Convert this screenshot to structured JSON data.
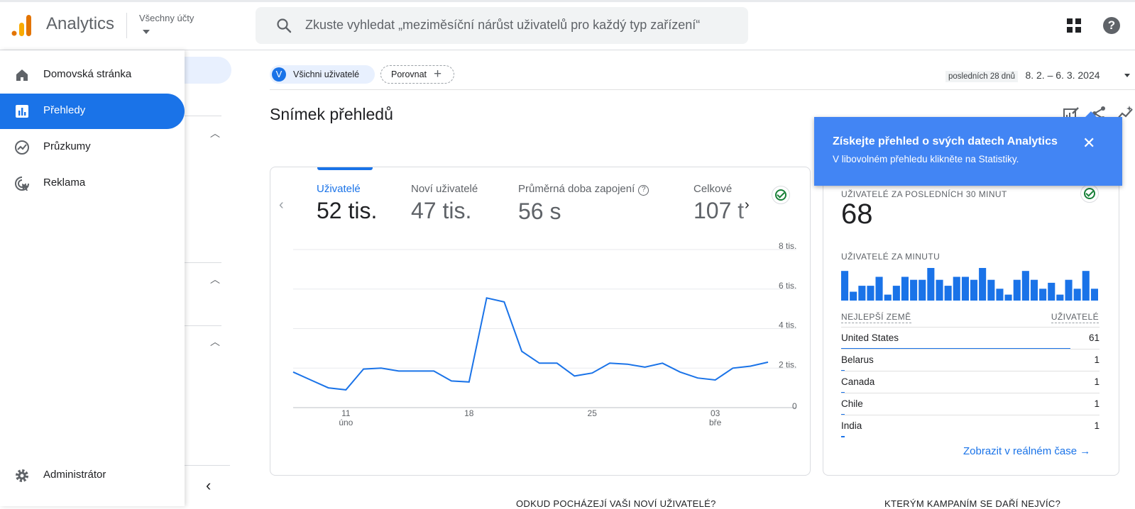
{
  "header": {
    "app_title": "Analytics",
    "account_label": "Všechny účty",
    "search_placeholder": "Zkuste vyhledat „meziměsíční nárůst uživatelů pro každý typ zařízení“",
    "icons": [
      "analytics-logo-icon",
      "search-icon",
      "apps-grid-icon",
      "help-icon"
    ]
  },
  "sidebar": {
    "items": [
      {
        "label": "Domovská stránka",
        "icon": "home-icon",
        "active": false
      },
      {
        "label": "Přehledy",
        "icon": "reports-icon",
        "active": true
      },
      {
        "label": "Průzkumy",
        "icon": "explore-icon",
        "active": false
      },
      {
        "label": "Reklama",
        "icon": "advertising-icon",
        "active": false
      }
    ],
    "admin_label": "Administrátor"
  },
  "filters": {
    "segment_badge": "V",
    "segment_label": "Všichni uživatelé",
    "compare_label": "Porovnat",
    "compare_icon": "+"
  },
  "date_range": {
    "tag": "posledních 28 dnů",
    "range": "8. 2. – 6. 3. 2024"
  },
  "page_title": "Snímek přehledů",
  "metrics": [
    {
      "label": "Uživatelé",
      "value": "52 tis.",
      "active": true
    },
    {
      "label": "Noví uživatelé",
      "value": "47 tis.",
      "active": false
    },
    {
      "label": "Průměrná doba zapojení",
      "value": "56 s",
      "active": false,
      "help": "?"
    },
    {
      "label": "Celkové",
      "value": "107 t",
      "active": false
    }
  ],
  "chart_data": {
    "type": "line",
    "x": [
      "8.2.",
      "9.2.",
      "10.2.",
      "11.2.",
      "12.2.",
      "13.2.",
      "14.2.",
      "15.2.",
      "16.2.",
      "17.2.",
      "18.2.",
      "19.2.",
      "20.2.",
      "21.2.",
      "22.2.",
      "23.2.",
      "24.2.",
      "25.2.",
      "26.2.",
      "27.2.",
      "28.2.",
      "29.2.",
      "1.3.",
      "2.3.",
      "3.3.",
      "4.3.",
      "5.3.",
      "6.3."
    ],
    "series": [
      {
        "values": [
          1800,
          1400,
          1000,
          900,
          1950,
          2000,
          1850,
          1850,
          1850,
          1350,
          1300,
          5550,
          5350,
          2850,
          2250,
          2250,
          1600,
          1750,
          2250,
          2200,
          2050,
          2250,
          1800,
          1500,
          1400,
          2000,
          2100,
          2300
        ],
        "color": "#1a73e8"
      }
    ],
    "yticks": [
      "0",
      "2 tis.",
      "4 tis.",
      "6 tis.",
      "8 tis."
    ],
    "ylim": [
      0,
      8000
    ],
    "xtick_labels": [
      {
        "day": "11",
        "month": "úno"
      },
      {
        "day": "18",
        "month": ""
      },
      {
        "day": "25",
        "month": ""
      },
      {
        "day": "03",
        "month": "bře"
      }
    ],
    "grid": true
  },
  "realtime": {
    "title": "UŽIVATELÉ ZA POSLEDNÍCH 30 MINUT",
    "value": "68",
    "per_minute_label": "UŽIVATELÉ ZA MINUTU",
    "per_minute_bars": [
      10,
      3,
      5,
      5,
      8,
      2,
      5,
      8,
      7,
      7,
      11,
      7,
      5,
      8,
      8,
      7,
      11,
      7,
      4,
      2,
      7,
      10,
      7,
      4,
      6,
      2,
      7,
      4,
      10,
      4
    ],
    "countries_header": "NEJLEPŠÍ ZEMĚ",
    "users_header": "UŽIVATELÉ",
    "countries": [
      {
        "name": "United States",
        "value": "61",
        "share": 0.98
      },
      {
        "name": "Belarus",
        "value": "1",
        "share": 0.016
      },
      {
        "name": "Canada",
        "value": "1",
        "share": 0.016
      },
      {
        "name": "Chile",
        "value": "1",
        "share": 0.016
      },
      {
        "name": "India",
        "value": "1",
        "share": 0.016
      }
    ],
    "link_label": "Zobrazit v reálném čase",
    "link_icon": "→"
  },
  "tooltip": {
    "title": "Získejte přehled o svých datech Analytics",
    "body": "V libovolném přehledu klikněte na Statistiky.",
    "close": "✕"
  },
  "bottom": {
    "question_1": "ODKUD POCHÁZEJÍ VAŠI NOVÍ UŽIVATELÉ?",
    "question_2": "KTERÝM KAMPANÍM SE DAŘÍ NEJVÍC?"
  }
}
